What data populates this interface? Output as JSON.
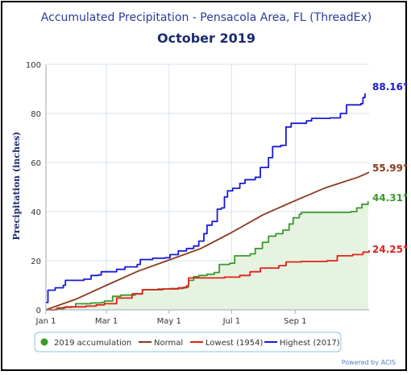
{
  "chart_data": {
    "type": "line",
    "title": "Accumulated Precipitation - Pensacola Area, FL (ThreadEx)",
    "subtitle": "October 2019",
    "ylabel": "Precipitation (inches)",
    "xlabel": "",
    "ylim": [
      0,
      100
    ],
    "yticks": [
      "0",
      "20",
      "40",
      "60",
      "80",
      "100"
    ],
    "xticks": [
      {
        "label": "Jan 1",
        "day": 1
      },
      {
        "label": "Mar 1",
        "day": 60
      },
      {
        "label": "May 1",
        "day": 121
      },
      {
        "label": "Jul 1",
        "day": 182
      },
      {
        "label": "Sep 1",
        "day": 244
      }
    ],
    "grid": true,
    "legend_position": "bottom",
    "series": [
      {
        "name": "2019 accumulation",
        "color": "#3a9a2a",
        "fill": "#e6f3e0",
        "end_label": "44.31\"",
        "points": [
          [
            1,
            0
          ],
          [
            10,
            0.3
          ],
          [
            18,
            1.0
          ],
          [
            26,
            1.2
          ],
          [
            30,
            2.5
          ],
          [
            45,
            2.8
          ],
          [
            55,
            3.0
          ],
          [
            58,
            3.6
          ],
          [
            66,
            5.5
          ],
          [
            74,
            6.0
          ],
          [
            88,
            6.5
          ],
          [
            95,
            8.2
          ],
          [
            110,
            8.5
          ],
          [
            122,
            8.7
          ],
          [
            135,
            9.2
          ],
          [
            140,
            12.0
          ],
          [
            145,
            13.5
          ],
          [
            150,
            14.0
          ],
          [
            158,
            14.5
          ],
          [
            165,
            15.2
          ],
          [
            170,
            18.5
          ],
          [
            180,
            19.0
          ],
          [
            185,
            22.0
          ],
          [
            200,
            22.8
          ],
          [
            205,
            25.0
          ],
          [
            212,
            27.5
          ],
          [
            218,
            30.0
          ],
          [
            225,
            31.0
          ],
          [
            232,
            32.5
          ],
          [
            238,
            35.0
          ],
          [
            242,
            37.5
          ],
          [
            248,
            39.0
          ],
          [
            250,
            39.7
          ],
          [
            280,
            39.7
          ],
          [
            298,
            40.0
          ],
          [
            304,
            41.5
          ],
          [
            309,
            43.0
          ],
          [
            315,
            44.31
          ]
        ]
      },
      {
        "name": "Normal",
        "color": "#8b3a1a",
        "end_label": "55.99\"",
        "points": [
          [
            1,
            0
          ],
          [
            30,
            4.3
          ],
          [
            60,
            10.0
          ],
          [
            91,
            15.8
          ],
          [
            121,
            20.3
          ],
          [
            152,
            25.0
          ],
          [
            182,
            31.5
          ],
          [
            213,
            38.8
          ],
          [
            244,
            44.5
          ],
          [
            274,
            49.8
          ],
          [
            305,
            54.0
          ],
          [
            316,
            55.99
          ]
        ]
      },
      {
        "name": "Lowest (1954)",
        "color": "#e0201a",
        "end_label": "24.25\"",
        "points": [
          [
            1,
            0
          ],
          [
            12,
            0.8
          ],
          [
            20,
            1.2
          ],
          [
            40,
            1.5
          ],
          [
            50,
            2.0
          ],
          [
            58,
            2.5
          ],
          [
            70,
            4.8
          ],
          [
            85,
            6.5
          ],
          [
            95,
            8.2
          ],
          [
            115,
            8.5
          ],
          [
            130,
            9.0
          ],
          [
            138,
            9.8
          ],
          [
            140,
            13.0
          ],
          [
            175,
            13.3
          ],
          [
            190,
            14.0
          ],
          [
            200,
            15.5
          ],
          [
            210,
            17.0
          ],
          [
            228,
            18.0
          ],
          [
            235,
            19.5
          ],
          [
            250,
            19.7
          ],
          [
            275,
            20.0
          ],
          [
            285,
            22.0
          ],
          [
            300,
            22.5
          ],
          [
            310,
            23.5
          ],
          [
            316,
            24.25
          ]
        ]
      },
      {
        "name": "Highest (2017)",
        "color": "#1a1ad8",
        "end_label": "88.16\"",
        "points": [
          [
            1,
            3.0
          ],
          [
            3,
            8.0
          ],
          [
            10,
            9.0
          ],
          [
            18,
            10.0
          ],
          [
            20,
            12.0
          ],
          [
            38,
            12.5
          ],
          [
            45,
            14.0
          ],
          [
            52,
            14.2
          ],
          [
            55,
            15.5
          ],
          [
            70,
            16.5
          ],
          [
            78,
            17.5
          ],
          [
            90,
            18.5
          ],
          [
            93,
            20.5
          ],
          [
            105,
            21.0
          ],
          [
            117,
            21.2
          ],
          [
            122,
            22.5
          ],
          [
            130,
            24.0
          ],
          [
            138,
            25.0
          ],
          [
            145,
            26.0
          ],
          [
            150,
            28.0
          ],
          [
            155,
            31.0
          ],
          [
            158,
            34.5
          ],
          [
            163,
            36.0
          ],
          [
            168,
            41.0
          ],
          [
            172,
            41.5
          ],
          [
            175,
            46.0
          ],
          [
            178,
            48.5
          ],
          [
            183,
            49.5
          ],
          [
            190,
            51.5
          ],
          [
            195,
            53.0
          ],
          [
            205,
            54.0
          ],
          [
            210,
            58.0
          ],
          [
            218,
            62.0
          ],
          [
            222,
            66.5
          ],
          [
            230,
            67.0
          ],
          [
            235,
            74.5
          ],
          [
            240,
            76.0
          ],
          [
            255,
            77.0
          ],
          [
            260,
            78.0
          ],
          [
            278,
            78.2
          ],
          [
            288,
            80.0
          ],
          [
            294,
            83.5
          ],
          [
            308,
            84.0
          ],
          [
            310,
            86.5
          ],
          [
            312,
            88.16
          ]
        ]
      }
    ]
  },
  "legend": {
    "items": [
      {
        "label": "2019 accumulation",
        "marker": "dot"
      },
      {
        "label": "Normal",
        "marker": "line"
      },
      {
        "label": "Lowest (1954)",
        "marker": "line"
      },
      {
        "label": "Highest (2017)",
        "marker": "line"
      }
    ]
  },
  "credit": "Powered by ACIS"
}
